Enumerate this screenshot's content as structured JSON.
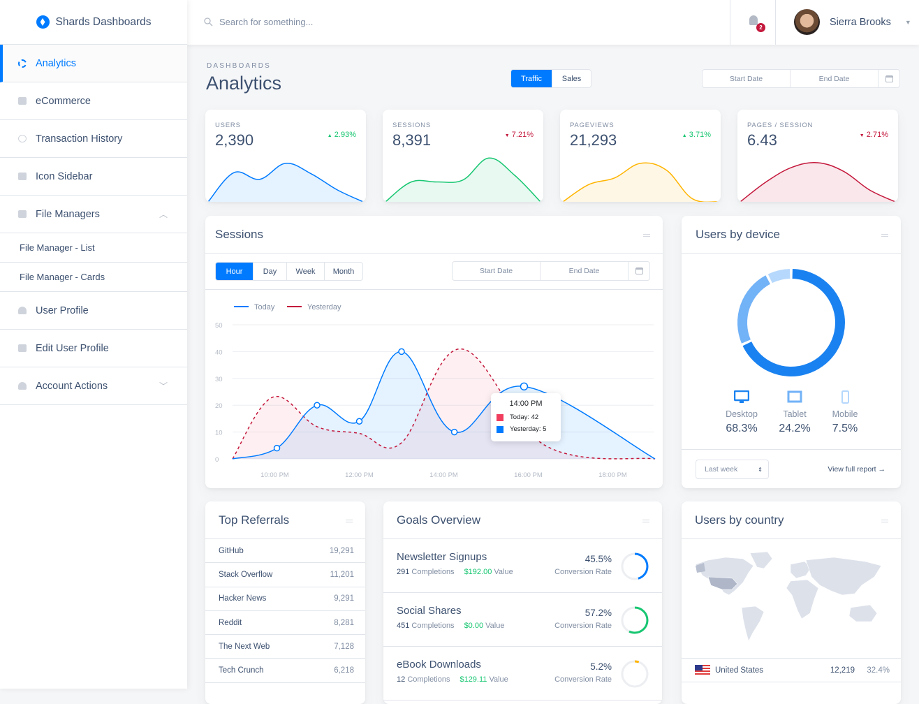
{
  "brand": {
    "name": "Shards Dashboards"
  },
  "sidebar": {
    "items": [
      {
        "label": "Analytics",
        "icon": "donut-icon",
        "active": true
      },
      {
        "label": "eCommerce",
        "icon": "store-icon"
      },
      {
        "label": "Transaction History",
        "icon": "history-icon"
      },
      {
        "label": "Icon Sidebar",
        "icon": "image-icon"
      },
      {
        "label": "File Managers",
        "icon": "folder-icon",
        "expanded": true
      },
      {
        "label": "File Manager - List"
      },
      {
        "label": "File Manager - Cards"
      },
      {
        "label": "User Profile",
        "icon": "person-icon"
      },
      {
        "label": "Edit User Profile",
        "icon": "settings-icon"
      },
      {
        "label": "Account Actions",
        "icon": "person-icon",
        "expanded": false
      }
    ]
  },
  "header": {
    "search_placeholder": "Search for something...",
    "notifications": "2",
    "user_name": "Sierra Brooks"
  },
  "page": {
    "subtitle": "DASHBOARDS",
    "title": "Analytics",
    "tabs": [
      "Traffic",
      "Sales"
    ],
    "start_date": "Start Date",
    "end_date": "End Date"
  },
  "stats": [
    {
      "label": "USERS",
      "value": "2,390",
      "change": "2.93%",
      "dir": "up",
      "color": "#007bff",
      "fill": "rgba(0,123,255,0.1)",
      "trend": [
        0,
        4.4,
        3.4,
        5.8,
        4.2,
        1.8,
        0
      ]
    },
    {
      "label": "SESSIONS",
      "value": "8,391",
      "change": "7.21%",
      "dir": "down",
      "color": "#17c671",
      "fill": "rgba(23,198,113,0.1)",
      "trend": [
        0,
        3,
        3,
        3.3,
        6.6,
        4,
        0
      ]
    },
    {
      "label": "PAGEVIEWS",
      "value": "21,293",
      "change": "3.71%",
      "dir": "up",
      "color": "#ffb400",
      "fill": "rgba(255,180,0,0.1)",
      "trend": [
        0,
        2.6,
        3.6,
        5.8,
        4.8,
        0.5,
        0
      ]
    },
    {
      "label": "PAGES / SESSION",
      "value": "6.43",
      "change": "2.71%",
      "dir": "down",
      "color": "#c4183c",
      "fill": "rgba(196,24,60,0.1)",
      "trend": [
        0,
        3,
        5.2,
        5.9,
        4.6,
        1.8,
        0
      ]
    }
  ],
  "sessions": {
    "title": "Sessions",
    "periods": [
      "Hour",
      "Day",
      "Week",
      "Month"
    ],
    "start_date": "Start Date",
    "end_date": "End Date",
    "tooltip": {
      "title": "14:00 PM",
      "today": "Today: 42",
      "yesterday": "Yesterday: 5"
    }
  },
  "chart_data": [
    {
      "type": "line",
      "ylim": [
        0,
        50
      ],
      "yticks": [
        "0",
        "10",
        "20",
        "30",
        "40",
        "50"
      ],
      "xticks": [
        "10:00 PM",
        "12:00 PM",
        "14:00 PM",
        "16:00 PM",
        "18:00 PM"
      ],
      "grid": true,
      "legend": "top-left",
      "series": [
        {
          "name": "Today",
          "color": "#007bff",
          "style": "solid",
          "x": [
            9,
            10.05,
            11,
            12,
            13,
            14.25,
            15.9,
            19
          ],
          "values": [
            0,
            4,
            20,
            14,
            40,
            10,
            27,
            0
          ]
        },
        {
          "name": "Yesterday",
          "color": "#c4183c",
          "style": "dashed",
          "x": [
            9,
            9.95,
            11,
            12,
            13,
            14.4,
            16.4,
            19
          ],
          "values": [
            0,
            23,
            12,
            9.5,
            6,
            41,
            5,
            0
          ]
        }
      ]
    },
    {
      "type": "pie",
      "title": "Users by device",
      "categories": [
        "Desktop",
        "Tablet",
        "Mobile"
      ],
      "values": [
        68.3,
        24.2,
        7.5
      ],
      "labels": [
        "68.3%",
        "24.2%",
        "7.5%"
      ],
      "colors": [
        "#1a82f0",
        "#72b2f7",
        "#b6d8fc"
      ],
      "icons": [
        "desktop-icon",
        "tablet-icon",
        "mobile-icon"
      ]
    }
  ],
  "device_footer": {
    "range": "Last week",
    "link": "View full report →"
  },
  "referrals": {
    "title": "Top Referrals",
    "rows": [
      {
        "name": "GitHub",
        "value": "19,291"
      },
      {
        "name": "Stack Overflow",
        "value": "11,201"
      },
      {
        "name": "Hacker News",
        "value": "9,291"
      },
      {
        "name": "Reddit",
        "value": "8,281"
      },
      {
        "name": "The Next Web",
        "value": "7,128"
      },
      {
        "name": "Tech Crunch",
        "value": "6,218"
      }
    ]
  },
  "goals": {
    "title": "Goals Overview",
    "rows": [
      {
        "name": "Newsletter Signups",
        "completions": "291",
        "completions_label": "Completions",
        "value": "$192.00",
        "value_label": "Value",
        "rate": "45.5%",
        "rate_label": "Conversion Rate",
        "progress": 0.455,
        "color": "#007bff"
      },
      {
        "name": "Social Shares",
        "completions": "451",
        "completions_label": "Completions",
        "value": "$0.00",
        "value_label": "Value",
        "rate": "57.2%",
        "rate_label": "Conversion Rate",
        "progress": 0.572,
        "color": "#17c671"
      },
      {
        "name": "eBook Downloads",
        "completions": "12",
        "completions_label": "Completions",
        "value": "$129.11",
        "value_label": "Value",
        "rate": "5.2%",
        "rate_label": "Conversion Rate",
        "progress": 0.052,
        "color": "#ffb400"
      }
    ]
  },
  "country": {
    "title": "Users by country",
    "rows": [
      {
        "name": "United States",
        "users": "12,219",
        "share": "32.4%"
      }
    ]
  }
}
